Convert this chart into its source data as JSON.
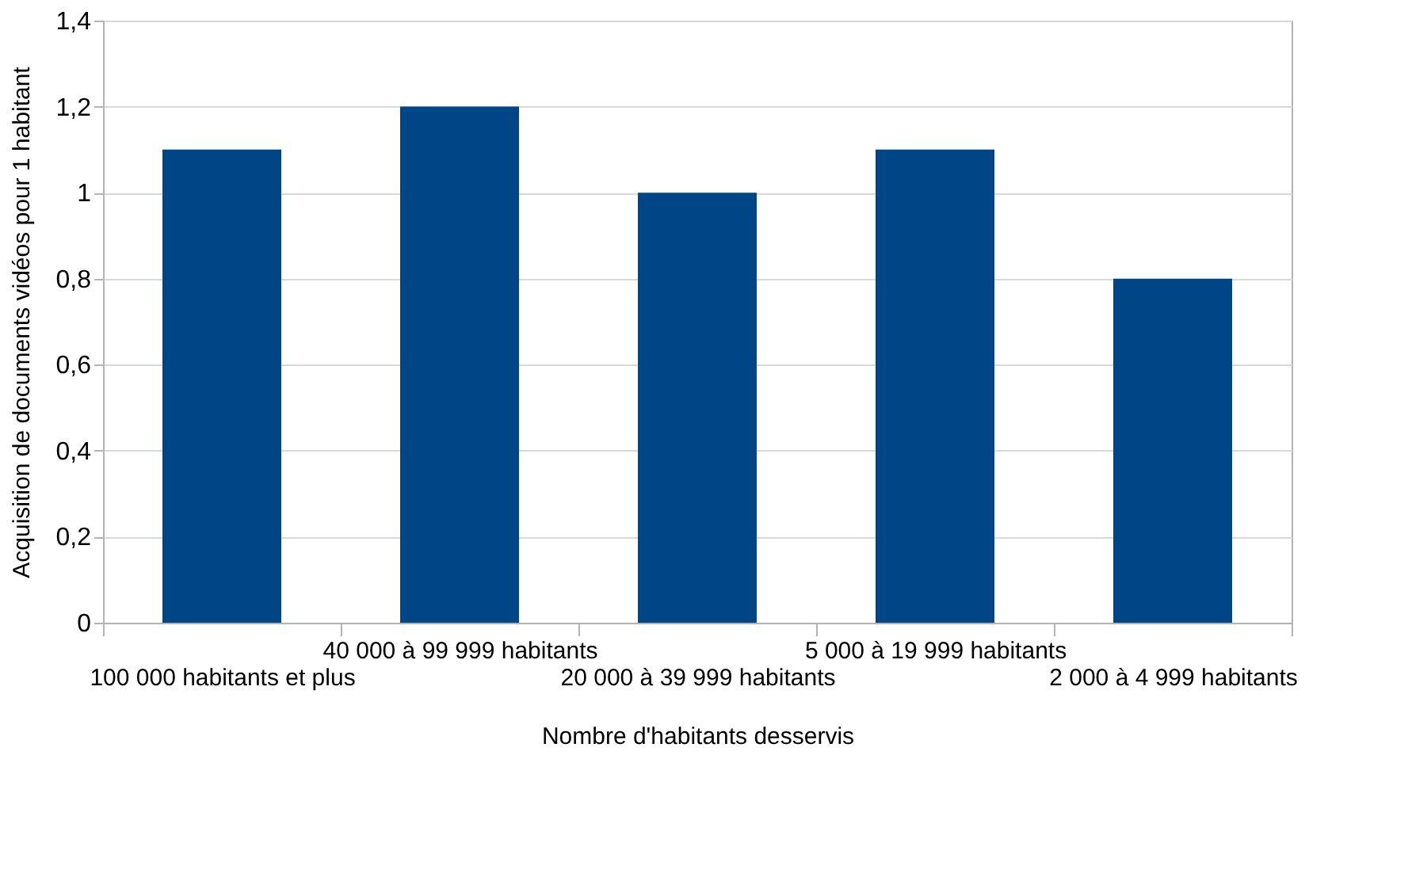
{
  "chart_data": {
    "type": "bar",
    "xlabel": "Nombre d'habitants desservis",
    "ylabel": "Acquisition de documents vidéos pour 1 habitant",
    "categories": [
      "100 000 habitants et plus",
      "40 000 à 99 999 habitants",
      "20 000 à 39 999 habitants",
      "5 000 à 19 999 habitants",
      "2 000 à 4 999 habitants"
    ],
    "values": [
      1.1,
      1.2,
      1.0,
      1.1,
      0.8
    ],
    "color": "#004586",
    "ylim": [
      0,
      1.4
    ],
    "yticks": [
      0,
      {
        "value": 0.2,
        "label": "0,2"
      },
      {
        "value": 0.4,
        "label": "0,4"
      },
      {
        "value": 0.6,
        "label": "0,6"
      },
      {
        "value": 0.8,
        "label": "0,8"
      },
      1,
      {
        "value": 1.2,
        "label": "1,2"
      },
      {
        "value": 1.4,
        "label": "1,4"
      }
    ],
    "grid": "y"
  }
}
